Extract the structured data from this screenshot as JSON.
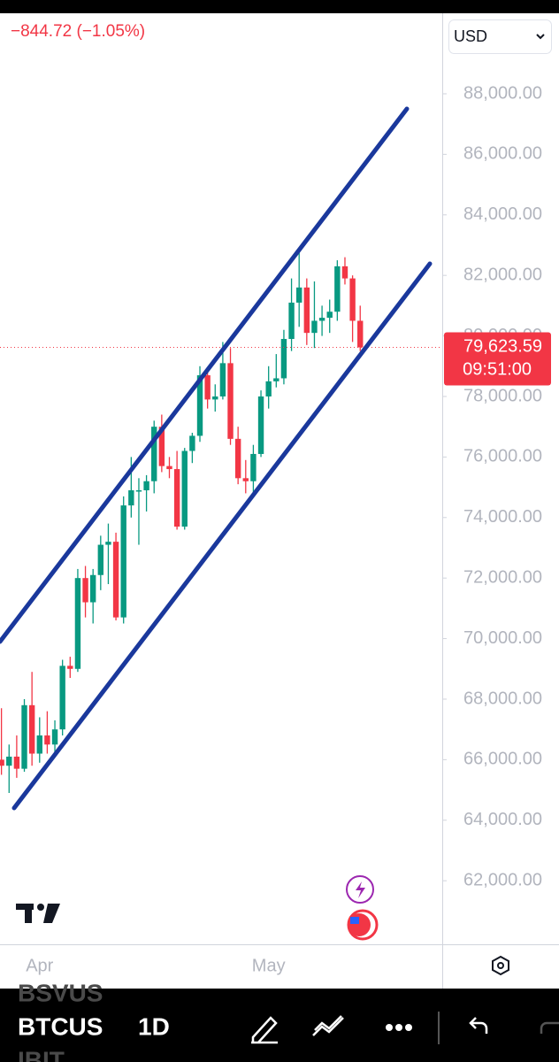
{
  "ui": {
    "change": "−844.72 (−1.05%)",
    "currency": "USD",
    "symbols": [
      "BSVUS",
      "BTCUS",
      "IBIT"
    ],
    "interval": "1D",
    "countdown": "09:51:00"
  },
  "chart_data": {
    "type": "candlestick",
    "categories": [
      null,
      null,
      null,
      null,
      null,
      null,
      "Apr",
      null,
      null,
      null,
      null,
      null,
      null,
      null,
      null,
      null,
      null,
      null,
      null,
      null,
      null,
      null,
      null,
      null,
      null,
      null,
      null,
      null,
      null,
      null,
      null,
      null,
      null,
      null,
      null,
      null,
      "May",
      null,
      null,
      null,
      null,
      null,
      null,
      null,
      null,
      null,
      null,
      null,
      null
    ],
    "open": [
      68300,
      66000,
      65800,
      66100,
      65700,
      67800,
      66200,
      66800,
      66500,
      67000,
      69100,
      69000,
      72000,
      71200,
      72100,
      73100,
      73200,
      70700,
      74400,
      74900,
      74900,
      75200,
      77000,
      75700,
      75600,
      73700,
      76200,
      76700,
      78700,
      77900,
      78000,
      79100,
      76600,
      75300,
      75200,
      76100,
      78000,
      78500,
      78600,
      79900,
      81100,
      81600,
      80100,
      80500,
      80600,
      80800,
      82300,
      81900,
      80500
    ],
    "high": [
      68500,
      67700,
      66500,
      66800,
      68000,
      68900,
      67400,
      67600,
      67300,
      69300,
      69400,
      72300,
      72400,
      72300,
      73400,
      73800,
      73500,
      74700,
      76000,
      75300,
      75400,
      77200,
      77400,
      76000,
      76200,
      76300,
      76800,
      79000,
      78800,
      78400,
      79800,
      79600,
      77000,
      75900,
      76400,
      78200,
      79000,
      79400,
      80200,
      81900,
      82800,
      81900,
      81800,
      81000,
      81200,
      82500,
      82600,
      82000,
      81000
    ],
    "low": [
      64800,
      65500,
      64900,
      65400,
      65600,
      65800,
      65900,
      66200,
      66200,
      66800,
      68700,
      68900,
      70700,
      70500,
      71600,
      71800,
      70600,
      70500,
      74000,
      73100,
      74200,
      74800,
      75500,
      75300,
      73600,
      73600,
      75800,
      76500,
      77600,
      77500,
      77900,
      76400,
      75100,
      74800,
      74700,
      76000,
      77600,
      78300,
      78400,
      79500,
      80300,
      79700,
      79600,
      80000,
      80100,
      80500,
      81700,
      79800,
      79500
    ],
    "close": [
      66000,
      65800,
      66100,
      65700,
      67800,
      66200,
      66800,
      66500,
      67000,
      69100,
      69000,
      72000,
      71200,
      72100,
      73100,
      73200,
      70700,
      74400,
      74900,
      74900,
      75200,
      77000,
      75700,
      75600,
      73700,
      76200,
      76700,
      78700,
      77900,
      78000,
      79100,
      76600,
      75300,
      75200,
      76100,
      78000,
      78500,
      78600,
      79900,
      81100,
      81600,
      80100,
      80500,
      80600,
      80800,
      82300,
      81900,
      80500,
      79623.59
    ],
    "up_color": "#089981",
    "down_color": "#f23645",
    "current_price": {
      "value": 79623.59,
      "label": "79,623.59"
    },
    "ylim": [
      59900,
      90660
    ],
    "yticks": [
      {
        "value": 62000,
        "label": "62,000.00"
      },
      {
        "value": 64000,
        "label": "64,000.00"
      },
      {
        "value": 66000,
        "label": "66,000.00"
      },
      {
        "value": 68000,
        "label": "68,000.00"
      },
      {
        "value": 70000,
        "label": "70,000.00"
      },
      {
        "value": 72000,
        "label": "72,000.00"
      },
      {
        "value": 74000,
        "label": "74,000.00"
      },
      {
        "value": 76000,
        "label": "76,000.00"
      },
      {
        "value": 78000,
        "label": "78,000.00"
      },
      {
        "value": 80000,
        "label": "80,000.00"
      },
      {
        "value": 82000,
        "label": "82,000.00"
      },
      {
        "value": 84000,
        "label": "84,000.00"
      },
      {
        "value": 86000,
        "label": "86,000.00"
      },
      {
        "value": 88000,
        "label": "88,000.00"
      }
    ]
  }
}
